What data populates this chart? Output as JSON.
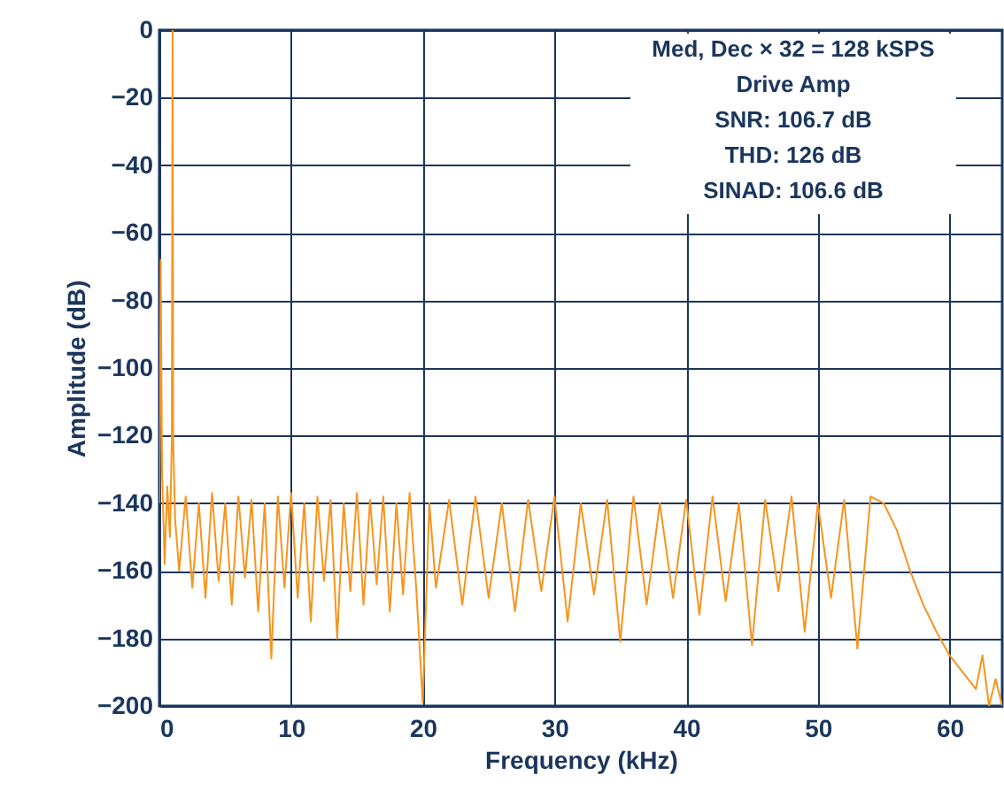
{
  "chart_data": {
    "type": "line",
    "xlabel": "Frequency (kHz)",
    "ylabel": "Amplitude (dB)",
    "annotations": [
      "Med, Dec × 32 = 128 kSPS",
      "Drive Amp",
      "SNR: 106.7 dB",
      "THD: 126 dB",
      "SINAD: 106.6 dB"
    ],
    "x": [
      0,
      0.1,
      0.2,
      0.4,
      0.6,
      0.8,
      0.95,
      1,
      1.05,
      1.2,
      1.5,
      2,
      2.5,
      3,
      3.5,
      4,
      4.5,
      5,
      5.5,
      6,
      6.5,
      7,
      7.5,
      8,
      8.5,
      9,
      9.5,
      10,
      10.5,
      11,
      11.5,
      12,
      12.5,
      13,
      13.5,
      14,
      14.5,
      15,
      15.5,
      16,
      16.5,
      17,
      17.5,
      18,
      18.5,
      19,
      19.5,
      20,
      20.5,
      21,
      22,
      23,
      24,
      25,
      26,
      27,
      28,
      29,
      30,
      31,
      32,
      33,
      34,
      35,
      36,
      37,
      38,
      39,
      40,
      41,
      42,
      43,
      44,
      45,
      46,
      47,
      48,
      49,
      50,
      51,
      52,
      53,
      54,
      55,
      56,
      57,
      58,
      59,
      60,
      61,
      62,
      62.5,
      63,
      63.5,
      64
    ],
    "series": [
      {
        "color": "#f7941d",
        "values": [
          -140,
          -68,
          -130,
          -158,
          -135,
          -150,
          -120,
          0,
          -122,
          -145,
          -160,
          -138,
          -165,
          -140,
          -168,
          -137,
          -163,
          -140,
          -170,
          -138,
          -162,
          -139,
          -172,
          -140,
          -186,
          -138,
          -165,
          -137,
          -168,
          -140,
          -175,
          -138,
          -163,
          -139,
          -180,
          -140,
          -166,
          -137,
          -170,
          -139,
          -164,
          -138,
          -172,
          -140,
          -167,
          -137,
          -165,
          -199,
          -140,
          -165,
          -139,
          -170,
          -138,
          -168,
          -140,
          -172,
          -139,
          -166,
          -138,
          -175,
          -140,
          -167,
          -139,
          -181,
          -138,
          -170,
          -140,
          -168,
          -139,
          -173,
          -138,
          -169,
          -140,
          -182,
          -139,
          -166,
          -138,
          -178,
          -140,
          -168,
          -139,
          -183,
          -138,
          -140,
          -148,
          -160,
          -170,
          -178,
          -185,
          -190,
          -195,
          -185,
          -200,
          -192,
          -200
        ]
      }
    ],
    "xlim": [
      0,
      64
    ],
    "xticks": [
      0,
      10,
      20,
      30,
      40,
      50,
      60
    ],
    "ylim": [
      -200,
      0
    ],
    "yticks": [
      0,
      -20,
      -40,
      -60,
      -80,
      -100,
      -120,
      -140,
      -160,
      -180,
      -200
    ],
    "grid": true,
    "line_style": "solid"
  }
}
